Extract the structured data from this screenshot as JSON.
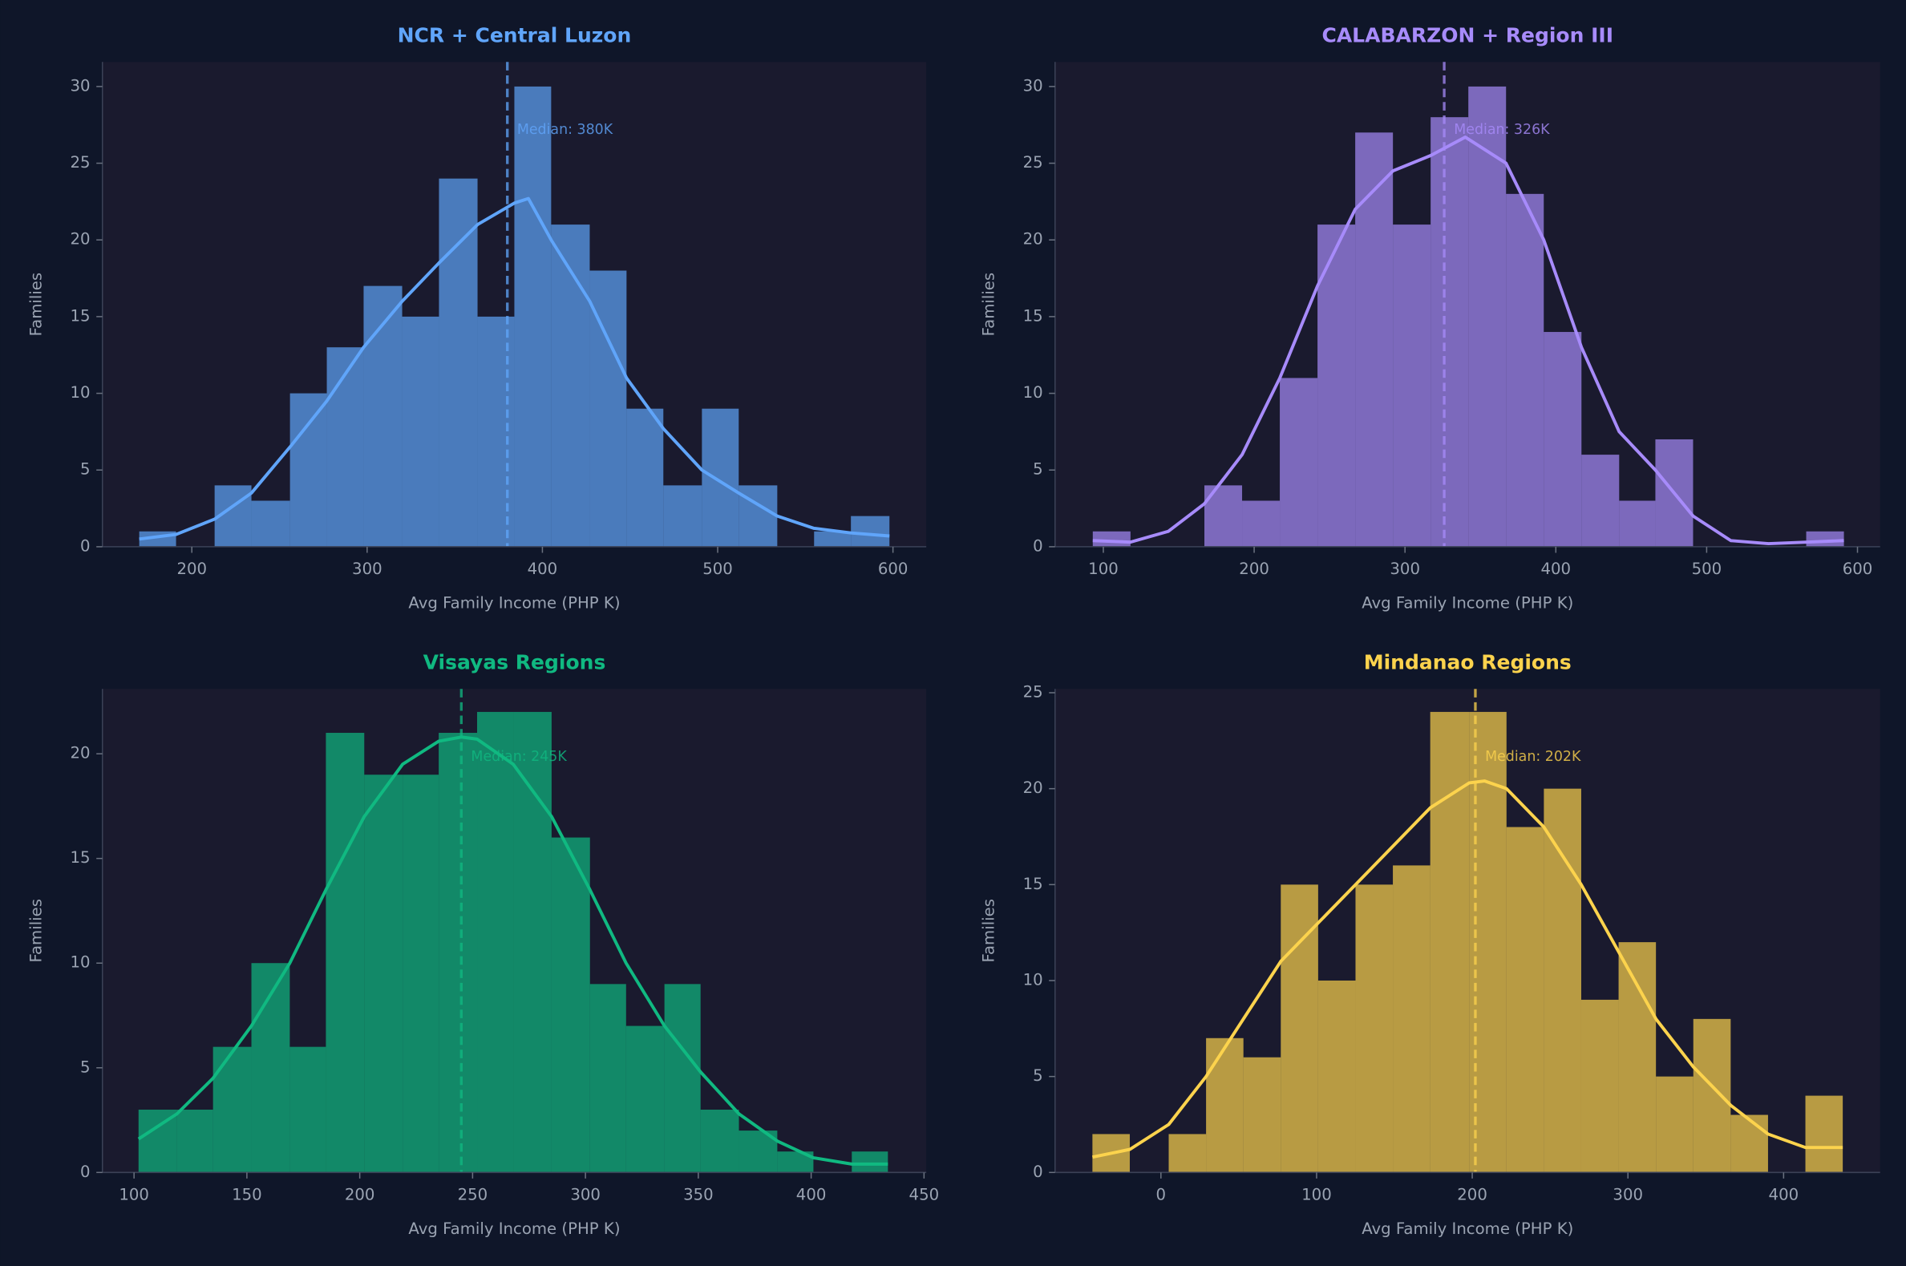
{
  "chart_data": [
    {
      "type": "histogram",
      "title": "NCR + Central Luzon",
      "xlabel": "Avg Family Income (PHP K)",
      "ylabel": "Families",
      "color": "#60a5fa",
      "bins": [
        170,
        191,
        213,
        234,
        256,
        277,
        298,
        320,
        341,
        363,
        384,
        405,
        427,
        448,
        469,
        491,
        512,
        534,
        555,
        576,
        598
      ],
      "values": [
        1,
        0,
        4,
        3,
        10,
        13,
        17,
        15,
        24,
        15,
        30,
        21,
        18,
        9,
        4,
        9,
        4,
        0,
        1,
        2
      ],
      "kde": {
        "x": [
          170,
          191,
          213,
          234,
          256,
          277,
          298,
          320,
          341,
          363,
          384,
          392,
          405,
          427,
          448,
          469,
          491,
          512,
          534,
          555,
          576,
          598
        ],
        "y": [
          0.5,
          0.8,
          1.8,
          3.5,
          6.5,
          9.5,
          13,
          16,
          18.5,
          21,
          22.4,
          22.7,
          20,
          16,
          11,
          7.7,
          5,
          3.5,
          2,
          1.2,
          0.9,
          0.7
        ]
      },
      "median": 380,
      "median_label": "Median: 380K",
      "xlim": [
        149,
        619
      ],
      "ylim": [
        0,
        31.6
      ],
      "xticks": [
        200,
        300,
        400,
        500,
        600
      ],
      "yticks": [
        0,
        5,
        10,
        15,
        20,
        25,
        30
      ]
    },
    {
      "type": "histogram",
      "title": "CALABARZON + Region III",
      "xlabel": "Avg Family Income (PHP K)",
      "ylabel": "Families",
      "color": "#a78bfa",
      "bins": [
        93,
        118,
        143,
        167,
        192,
        217,
        242,
        267,
        292,
        317,
        342,
        367,
        392,
        417,
        442,
        466,
        491,
        516,
        541,
        566,
        591
      ],
      "values": [
        1,
        0,
        0,
        4,
        3,
        11,
        21,
        27,
        21,
        28,
        30,
        23,
        14,
        6,
        3,
        7,
        0,
        0,
        0,
        1
      ],
      "kde": {
        "x": [
          93,
          118,
          143,
          167,
          192,
          217,
          242,
          267,
          292,
          317,
          340,
          367,
          392,
          417,
          442,
          466,
          491,
          516,
          541,
          566,
          591
        ],
        "y": [
          0.4,
          0.3,
          1.0,
          2.8,
          6,
          11,
          17,
          22,
          24.5,
          25.5,
          26.7,
          25,
          20,
          13,
          7.5,
          5,
          2,
          0.4,
          0.2,
          0.3,
          0.4
        ]
      },
      "median": 326,
      "median_label": "Median: 326K",
      "xlim": [
        68,
        615
      ],
      "ylim": [
        0,
        31.6
      ],
      "xticks": [
        100,
        200,
        300,
        400,
        500,
        600
      ],
      "yticks": [
        0,
        5,
        10,
        15,
        20,
        25,
        30
      ]
    },
    {
      "type": "histogram",
      "title": "Visayas Regions",
      "xlabel": "Avg Family Income (PHP K)",
      "ylabel": "Families",
      "color": "#10b981",
      "bins": [
        102,
        119,
        135,
        152,
        169,
        185,
        202,
        219,
        235,
        252,
        268,
        285,
        302,
        318,
        335,
        351,
        368,
        385,
        401,
        418,
        434
      ],
      "values": [
        3,
        3,
        6,
        10,
        6,
        21,
        19,
        19,
        21,
        22,
        22,
        16,
        9,
        7,
        9,
        3,
        2,
        1,
        0,
        1
      ],
      "kde": {
        "x": [
          102,
          119,
          135,
          152,
          169,
          185,
          202,
          219,
          235,
          245,
          252,
          268,
          285,
          302,
          318,
          335,
          351,
          368,
          385,
          401,
          418,
          434
        ],
        "y": [
          1.6,
          2.8,
          4.5,
          7,
          10,
          13.5,
          17,
          19.5,
          20.6,
          20.8,
          20.7,
          19.5,
          17,
          13.5,
          10,
          7,
          4.8,
          2.8,
          1.5,
          0.7,
          0.4,
          0.4
        ]
      },
      "median": 245,
      "median_label": "Median: 245K",
      "xlim": [
        86,
        451
      ],
      "ylim": [
        0,
        23.1
      ],
      "xticks": [
        100,
        150,
        200,
        250,
        300,
        350,
        400,
        450
      ],
      "yticks": [
        0,
        5,
        10,
        15,
        20
      ]
    },
    {
      "type": "histogram",
      "title": "Mindanao Regions",
      "xlabel": "Avg Family Income (PHP K)",
      "ylabel": "Families",
      "color": "#fcd34d",
      "bins": [
        -44,
        -20,
        5,
        29,
        53,
        77,
        101,
        125,
        149,
        173,
        198,
        222,
        246,
        270,
        294,
        318,
        342,
        366,
        390,
        414,
        438
      ],
      "values": [
        2,
        0,
        2,
        7,
        6,
        15,
        10,
        15,
        16,
        24,
        24,
        18,
        20,
        9,
        12,
        5,
        8,
        3,
        0,
        4
      ],
      "kde": {
        "x": [
          -44,
          -20,
          5,
          29,
          53,
          77,
          101,
          125,
          149,
          173,
          198,
          208,
          222,
          246,
          270,
          294,
          318,
          342,
          366,
          390,
          414,
          438
        ],
        "y": [
          0.8,
          1.2,
          2.5,
          5,
          8,
          11,
          13,
          15,
          17,
          19,
          20.3,
          20.4,
          20,
          18,
          15,
          11.5,
          8,
          5.5,
          3.5,
          2,
          1.3,
          1.3
        ]
      },
      "median": 202,
      "median_label": "Median: 202K",
      "xlim": [
        -68,
        462
      ],
      "ylim": [
        0,
        25.2
      ],
      "xticks": [
        0,
        100,
        200,
        300,
        400
      ],
      "yticks": [
        0,
        5,
        10,
        15,
        20,
        25
      ]
    }
  ]
}
